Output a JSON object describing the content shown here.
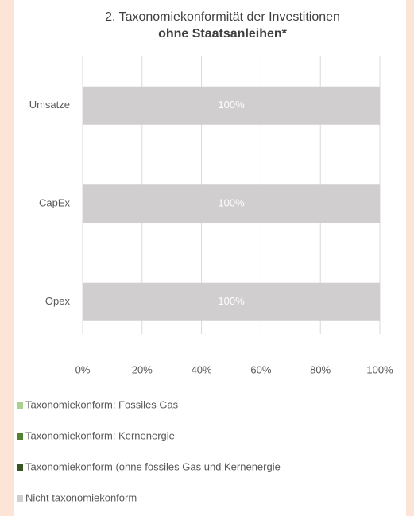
{
  "chart_data": {
    "type": "stacked_barh",
    "title": "2. Taxonomiekonformität der Investitionen",
    "subtitle": "ohne Staatsanleihen*",
    "categories": [
      "Umsatze",
      "CapEx",
      "Opex"
    ],
    "series": [
      {
        "name": "Taxonomiekonform: Fossiles Gas",
        "color": "#a9d18e",
        "values": [
          0,
          0,
          0
        ]
      },
      {
        "name": "Taxonomiekonform: Kernenergie",
        "color": "#548235",
        "values": [
          0,
          0,
          0
        ]
      },
      {
        "name": "Taxonomiekonform (ohne fossiles Gas und Kernenergie",
        "color": "#375623",
        "values": [
          0,
          0,
          0
        ],
        "value_labels": [
          "%",
          "%",
          "%"
        ]
      },
      {
        "name": "Nicht taxonomiekonform",
        "color": "#d0cece",
        "values": [
          100,
          100,
          100
        ],
        "value_labels": [
          "100%",
          "100%",
          "100%"
        ]
      }
    ],
    "xlim": [
      0,
      100
    ],
    "xticks": [
      {
        "value": 0,
        "label": "0%"
      },
      {
        "value": 20,
        "label": "20%"
      },
      {
        "value": 40,
        "label": "40%"
      },
      {
        "value": 60,
        "label": "60%"
      },
      {
        "value": 80,
        "label": "80%"
      },
      {
        "value": 100,
        "label": "100%"
      }
    ],
    "grid": true
  }
}
